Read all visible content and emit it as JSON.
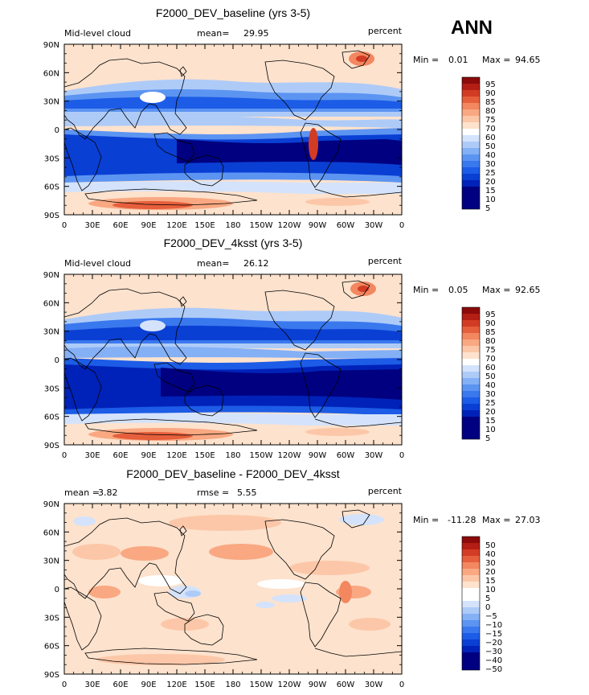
{
  "season": "ANN",
  "colors": {
    "abs_levels": [
      "#000080",
      "#0022b8",
      "#0a3fd4",
      "#1c5ce6",
      "#3a78ee",
      "#5c94f2",
      "#84b0f6",
      "#aecbf8",
      "#d4e3fb",
      "#ffffff",
      "#fde2cd",
      "#fcc7a8",
      "#f9a882",
      "#f38760",
      "#e65f3c",
      "#d23c24",
      "#b41e14",
      "#8c0a0a"
    ],
    "diff_levels": [
      "#000080",
      "#0022b8",
      "#0a3fd4",
      "#1c5ce6",
      "#3a78ee",
      "#5c94f2",
      "#84b0f6",
      "#aecbf8",
      "#d4e3fb",
      "#ffffff",
      "#ffffff",
      "#fde2cd",
      "#fcc7a8",
      "#f9a882",
      "#f38760",
      "#e65f3c",
      "#d23c24",
      "#b41e14",
      "#8c0a0a"
    ]
  },
  "axes": {
    "lat_ticks": [
      "90N",
      "60N",
      "30N",
      "0",
      "30S",
      "60S",
      "90S"
    ],
    "lon_ticks": [
      "0",
      "30E",
      "60E",
      "90E",
      "120E",
      "150E",
      "180",
      "150W",
      "120W",
      "90W",
      "60W",
      "30W",
      "0"
    ]
  },
  "panels": [
    {
      "title": "F2000_DEV_baseline (yrs 3-5)",
      "left_label": "Mid-level cloud",
      "center_label": "mean=",
      "center_value": "29.95",
      "units": "percent",
      "min_label": "Min =",
      "min_value": "0.01",
      "max_label": "Max =",
      "max_value": "94.65",
      "colorbar_labels": [
        "95",
        "90",
        "85",
        "80",
        "75",
        "70",
        "60",
        "50",
        "40",
        "30",
        "25",
        "20",
        "15",
        "10",
        "5"
      ]
    },
    {
      "title": "F2000_DEV_4ksst (yrs 3-5)",
      "left_label": "Mid-level cloud",
      "center_label": "mean=",
      "center_value": "26.12",
      "units": "percent",
      "min_label": "Min =",
      "min_value": "0.05",
      "max_label": "Max =",
      "max_value": "92.65",
      "colorbar_labels": [
        "95",
        "90",
        "85",
        "80",
        "75",
        "70",
        "60",
        "50",
        "40",
        "30",
        "25",
        "20",
        "15",
        "10",
        "5"
      ]
    },
    {
      "title": "F2000_DEV_baseline - F2000_DEV_4ksst",
      "left_label": "mean =",
      "left_value": "3.82",
      "center_label": "rmse =",
      "center_value": "5.55",
      "units": "percent",
      "min_label": "Min =",
      "min_value": "-11.28",
      "max_label": "Max =",
      "max_value": "27.03",
      "colorbar_labels": [
        "50",
        "40",
        "30",
        "20",
        "15",
        "10",
        "5",
        "0",
        "−5",
        "−10",
        "−15",
        "−20",
        "−30",
        "−40",
        "−50"
      ]
    }
  ],
  "chart_data": [
    {
      "type": "heatmap",
      "title": "F2000_DEV_baseline (yrs 3-5)",
      "variable": "Mid-level cloud",
      "units": "percent",
      "mean": 29.95,
      "min": 0.01,
      "max": 94.65,
      "x_range": [
        0,
        360
      ],
      "y_range": [
        -90,
        90
      ],
      "levels": [
        5,
        10,
        15,
        20,
        25,
        30,
        40,
        50,
        60,
        70,
        75,
        80,
        85,
        90,
        95
      ]
    },
    {
      "type": "heatmap",
      "title": "F2000_DEV_4ksst (yrs 3-5)",
      "variable": "Mid-level cloud",
      "units": "percent",
      "mean": 26.12,
      "min": 0.05,
      "max": 92.65,
      "x_range": [
        0,
        360
      ],
      "y_range": [
        -90,
        90
      ],
      "levels": [
        5,
        10,
        15,
        20,
        25,
        30,
        40,
        50,
        60,
        70,
        75,
        80,
        85,
        90,
        95
      ]
    },
    {
      "type": "heatmap",
      "title": "F2000_DEV_baseline - F2000_DEV_4ksst",
      "units": "percent",
      "mean": 3.82,
      "rmse": 5.55,
      "min": -11.28,
      "max": 27.03,
      "x_range": [
        0,
        360
      ],
      "y_range": [
        -90,
        90
      ],
      "levels": [
        -50,
        -40,
        -30,
        -20,
        -15,
        -10,
        -5,
        0,
        5,
        10,
        15,
        20,
        30,
        40,
        50
      ]
    }
  ]
}
